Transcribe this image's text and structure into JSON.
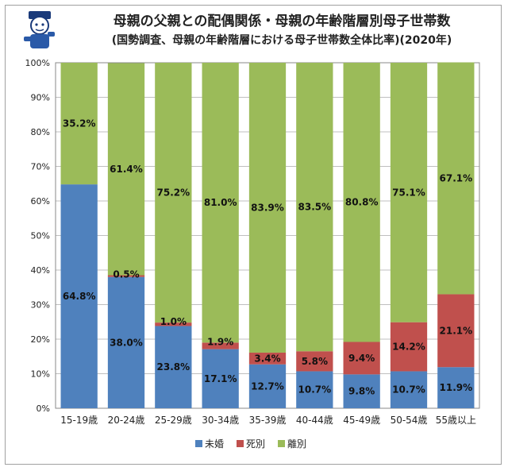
{
  "chart_data": {
    "type": "bar",
    "stacked": true,
    "title": "母親の父親との配偶関係・母親の年齢階層別母子世帯数",
    "subtitle": "(国勢調査、母親の年齢階層における母子世帯数全体比率)(2020年)",
    "xlabel": "",
    "ylabel": "",
    "ylim": [
      0,
      100
    ],
    "yticks": [
      "0%",
      "10%",
      "20%",
      "30%",
      "40%",
      "50%",
      "60%",
      "70%",
      "80%",
      "90%",
      "100%"
    ],
    "categories": [
      "15-19歳",
      "20-24歳",
      "25-29歳",
      "30-34歳",
      "35-39歳",
      "40-44歳",
      "45-49歳",
      "50-54歳",
      "55歳以上"
    ],
    "series": [
      {
        "name": "未婚",
        "color": "#4f81bd",
        "values": [
          64.8,
          38.0,
          23.8,
          17.1,
          12.7,
          10.7,
          9.8,
          10.7,
          11.9
        ],
        "labels": [
          "64.8%",
          "38.0%",
          "23.8%",
          "17.1%",
          "12.7%",
          "10.7%",
          "9.8%",
          "10.7%",
          "11.9%"
        ]
      },
      {
        "name": "死別",
        "color": "#c0504d",
        "values": [
          0.0,
          0.5,
          1.0,
          1.9,
          3.4,
          5.8,
          9.4,
          14.2,
          21.1
        ],
        "labels": [
          "",
          "0.5%",
          "1.0%",
          "1.9%",
          "3.4%",
          "5.8%",
          "9.4%",
          "14.2%",
          "21.1%"
        ]
      },
      {
        "name": "離別",
        "color": "#9bbb59",
        "values": [
          35.2,
          61.4,
          75.2,
          81.0,
          83.9,
          83.5,
          80.8,
          75.1,
          67.1
        ],
        "labels": [
          "35.2%",
          "61.4%",
          "75.2%",
          "81.0%",
          "83.9%",
          "83.5%",
          "80.8%",
          "75.1%",
          "67.1%"
        ]
      }
    ],
    "grid": true,
    "legend_position": "bottom"
  }
}
